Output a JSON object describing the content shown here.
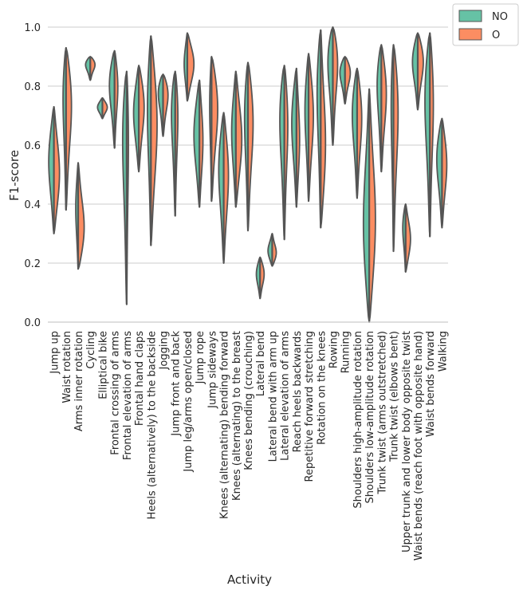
{
  "chart_data": {
    "type": "violin",
    "xlabel": "Activity",
    "ylabel": "F1-score",
    "ylim": [
      0.0,
      1.0
    ],
    "yticks": [
      "0.0",
      "0.2",
      "0.4",
      "0.6",
      "0.8",
      "1.0"
    ],
    "grid": "horizontal",
    "legend_position": "top-right (outside)",
    "split": true,
    "colors": {
      "NO": "#66c2a5",
      "O": "#fc8d62",
      "outline": "#555555",
      "grid": "#cccccc"
    },
    "series": [
      {
        "name": "NO"
      },
      {
        "name": "O"
      }
    ],
    "categories": [
      "Jump up",
      "Waist rotation",
      "Arms inner rotation",
      "Cycling",
      "Elliptical bike",
      "Frontal crossing of arms",
      "Frontal elevation of arms",
      "Frontal hand claps",
      "Heels (alternatively) to the backside",
      "Jogging",
      "Jump front and back",
      "Jump leg/arms open/closed",
      "Jump rope",
      "Jump sideways",
      "Knees (alternating) bending forward",
      "Knees (alternating) to the breast",
      "Knees bending (crouching)",
      "Lateral bend",
      "Lateral bend with arm up",
      "Lateral elevation of arms",
      "Reach heels backwards",
      "Repetitive forward stretching",
      "Rotation on the knees",
      "Rowing",
      "Running",
      "Shoulders high-amplitude rotation",
      "Shoulders low-amplitude rotation",
      "Trunk twist (arms outstretched)",
      "Trunk twist (elbows bent)",
      "Upper trunk and lower body opposite twist",
      "Waist bends (reach foot with opposite hand)",
      "Waist bends forward",
      "Walking"
    ],
    "violins": [
      {
        "min": 0.3,
        "max": 0.73,
        "no_peak": 0.56,
        "no_w": 0.75,
        "o_peak": 0.5,
        "o_w": 0.8
      },
      {
        "min": 0.38,
        "max": 0.93,
        "no_peak": 0.82,
        "no_w": 0.5,
        "o_peak": 0.78,
        "o_w": 0.85
      },
      {
        "min": 0.18,
        "max": 0.54,
        "no_peak": 0.4,
        "no_w": 0.35,
        "o_peak": 0.3,
        "o_w": 0.9
      },
      {
        "min": 0.82,
        "max": 0.9,
        "no_peak": 0.88,
        "no_w": 0.75,
        "o_peak": 0.88,
        "o_w": 0.75
      },
      {
        "min": 0.69,
        "max": 0.76,
        "no_peak": 0.73,
        "no_w": 0.7,
        "o_peak": 0.73,
        "o_w": 0.7
      },
      {
        "min": 0.59,
        "max": 0.92,
        "no_peak": 0.83,
        "no_w": 0.8,
        "o_peak": 0.82,
        "o_w": 0.5
      },
      {
        "min": 0.06,
        "max": 0.85,
        "no_peak": 0.72,
        "no_w": 0.7,
        "o_peak": 0.7,
        "o_w": 0.3
      },
      {
        "min": 0.51,
        "max": 0.87,
        "no_peak": 0.72,
        "no_w": 0.75,
        "o_peak": 0.75,
        "o_w": 0.8
      },
      {
        "min": 0.26,
        "max": 0.97,
        "no_peak": 0.78,
        "no_w": 0.55,
        "o_peak": 0.7,
        "o_w": 0.9
      },
      {
        "min": 0.63,
        "max": 0.84,
        "no_peak": 0.8,
        "no_w": 0.8,
        "o_peak": 0.79,
        "o_w": 0.8
      },
      {
        "min": 0.36,
        "max": 0.85,
        "no_peak": 0.77,
        "no_w": 0.65,
        "o_peak": 0.75,
        "o_w": 0.45
      },
      {
        "min": 0.75,
        "max": 0.98,
        "no_peak": 0.88,
        "no_w": 0.45,
        "o_peak": 0.88,
        "o_w": 0.95
      },
      {
        "min": 0.39,
        "max": 0.82,
        "no_peak": 0.65,
        "no_w": 0.8,
        "o_peak": 0.62,
        "o_w": 0.5
      },
      {
        "min": 0.41,
        "max": 0.9,
        "no_peak": 0.78,
        "no_w": 0.3,
        "o_peak": 0.76,
        "o_w": 0.95
      },
      {
        "min": 0.2,
        "max": 0.71,
        "no_peak": 0.55,
        "no_w": 0.75,
        "o_peak": 0.52,
        "o_w": 0.7
      },
      {
        "min": 0.39,
        "max": 0.85,
        "no_peak": 0.66,
        "no_w": 0.6,
        "o_peak": 0.62,
        "o_w": 0.85
      },
      {
        "min": 0.31,
        "max": 0.88,
        "no_peak": 0.75,
        "no_w": 0.55,
        "o_peak": 0.72,
        "o_w": 0.8
      },
      {
        "min": 0.08,
        "max": 0.22,
        "no_peak": 0.17,
        "no_w": 0.55,
        "o_peak": 0.17,
        "o_w": 0.6
      },
      {
        "min": 0.19,
        "max": 0.3,
        "no_peak": 0.24,
        "no_w": 0.6,
        "o_peak": 0.23,
        "o_w": 0.6
      },
      {
        "min": 0.28,
        "max": 0.87,
        "no_peak": 0.75,
        "no_w": 0.75,
        "o_peak": 0.72,
        "o_w": 0.55
      },
      {
        "min": 0.39,
        "max": 0.86,
        "no_peak": 0.7,
        "no_w": 0.7,
        "o_peak": 0.62,
        "o_w": 0.45
      },
      {
        "min": 0.41,
        "max": 0.91,
        "no_peak": 0.75,
        "no_w": 0.55,
        "o_peak": 0.72,
        "o_w": 0.7
      },
      {
        "min": 0.32,
        "max": 0.99,
        "no_peak": 0.85,
        "no_w": 0.6,
        "o_peak": 0.58,
        "o_w": 0.7
      },
      {
        "min": 0.6,
        "max": 1.0,
        "no_peak": 0.93,
        "no_w": 0.85,
        "o_peak": 0.92,
        "o_w": 0.8
      },
      {
        "min": 0.74,
        "max": 0.9,
        "no_peak": 0.86,
        "no_w": 0.8,
        "o_peak": 0.86,
        "o_w": 0.85
      },
      {
        "min": 0.42,
        "max": 0.86,
        "no_peak": 0.74,
        "no_w": 0.75,
        "o_peak": 0.72,
        "o_w": 0.7
      },
      {
        "min": 0.0,
        "max": 0.79,
        "no_peak": 0.3,
        "no_w": 0.85,
        "o_peak": 0.32,
        "o_w": 0.9
      },
      {
        "min": 0.51,
        "max": 0.94,
        "no_peak": 0.85,
        "no_w": 0.7,
        "o_peak": 0.8,
        "o_w": 0.75
      },
      {
        "min": 0.24,
        "max": 0.94,
        "no_peak": 0.82,
        "no_w": 0.4,
        "o_peak": 0.78,
        "o_w": 0.75
      },
      {
        "min": 0.17,
        "max": 0.4,
        "no_peak": 0.34,
        "no_w": 0.45,
        "o_peak": 0.28,
        "o_w": 0.7
      },
      {
        "min": 0.72,
        "max": 0.98,
        "no_peak": 0.9,
        "no_w": 0.8,
        "o_peak": 0.9,
        "o_w": 0.85
      },
      {
        "min": 0.29,
        "max": 0.98,
        "no_peak": 0.82,
        "no_w": 0.8,
        "o_peak": 0.8,
        "o_w": 0.55
      },
      {
        "min": 0.32,
        "max": 0.69,
        "no_peak": 0.58,
        "no_w": 0.8,
        "o_peak": 0.55,
        "o_w": 0.7
      }
    ]
  }
}
